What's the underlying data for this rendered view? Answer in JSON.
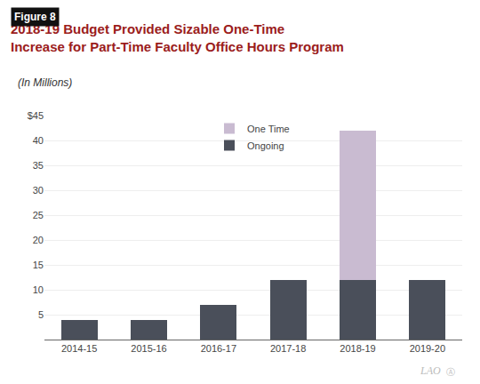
{
  "chart_data": {
    "type": "bar",
    "title": "2018-19 Budget Provided Sizable One-Time\nIncrease for Part-Time Faculty Office Hours Program",
    "subtitle": "(In Millions)",
    "categories": [
      "2014-15",
      "2015-16",
      "2016-17",
      "2017-18",
      "2018-19",
      "2019-20"
    ],
    "series": [
      {
        "name": "Ongoing",
        "color": "#4a4f5a",
        "values": [
          4,
          4,
          7,
          12,
          12,
          12
        ]
      },
      {
        "name": "One Time",
        "color": "#c9bbd1",
        "values": [
          0,
          0,
          0,
          0,
          30,
          0
        ]
      }
    ],
    "stacked": true,
    "ylim": [
      0,
      45
    ],
    "yticks": [
      5,
      10,
      15,
      20,
      25,
      30,
      35,
      40,
      {
        "value": 45,
        "label": "$45"
      }
    ],
    "grid": true,
    "legend": "top",
    "annotations": [
      "Figure 8",
      "LAO",
      "Ⓐ"
    ]
  }
}
